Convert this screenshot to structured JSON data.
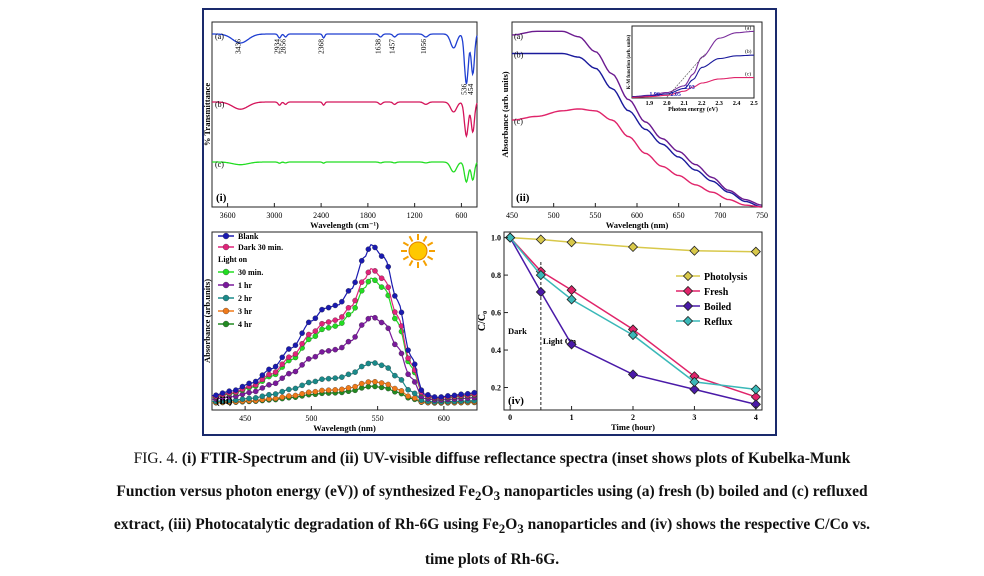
{
  "caption": {
    "fig_label": "FIG. 4.",
    "line1": " (i) FTIR-Spectrum and (ii) UV-visible diffuse reflectance spectra (inset shows plots of Kubelka-Munk",
    "line2_pre": "Function versus photon energy (eV)) of synthesized Fe",
    "line2_post": "O",
    "line2_end": " nanoparticles using (a) fresh (b) boiled and (c) refluxed",
    "line3_pre": "extract, (iii) Photocatalytic degradation of Rh-6G using Fe",
    "line3_post": "O",
    "line3_end": " nanoparticles and (iv) shows the respective C/Co vs.",
    "line4": "time plots of Rh-6G.",
    "sub2": "2",
    "sub3": "3"
  },
  "chart_data": [
    {
      "type": "line",
      "panel": "(i)",
      "title": "",
      "xlabel": "Wavelength (cm⁻¹)",
      "ylabel": "% Transmittance",
      "xlim": [
        3800,
        400
      ],
      "x_ticks": [
        3600,
        3000,
        2400,
        1800,
        1200,
        600
      ],
      "x_tick_labels": [
        "3600",
        "3000",
        "2400",
        "1800",
        "1200",
        "600"
      ],
      "series": [
        {
          "name": "(a)",
          "color": "#1f3fd1"
        },
        {
          "name": "(b)",
          "color": "#d4145a"
        },
        {
          "name": "(c)",
          "color": "#22dd22"
        }
      ],
      "peak_labels": [
        "3436",
        "2934",
        "2856",
        "2368",
        "1638",
        "1457",
        "1056",
        "536",
        "454"
      ],
      "peak_positions": [
        3436,
        2934,
        2856,
        2368,
        1638,
        1457,
        1056,
        536,
        454
      ]
    },
    {
      "type": "line",
      "panel": "(ii)",
      "xlabel": "Wavelength (nm)",
      "ylabel": "Absorbance (arb. units)",
      "xlim": [
        450,
        750
      ],
      "x_ticks": [
        450,
        500,
        550,
        600,
        650,
        700,
        750
      ],
      "x_tick_labels": [
        "450",
        "500",
        "550",
        "600",
        "650",
        "700",
        "750"
      ],
      "series": [
        {
          "name": "(a)",
          "color": "#6b1a8f",
          "x": [
            450,
            480,
            510,
            530,
            550,
            570,
            590,
            610,
            630,
            650,
            670,
            690,
            710,
            730,
            750
          ],
          "y": [
            0.93,
            0.95,
            0.95,
            0.92,
            0.84,
            0.72,
            0.58,
            0.46,
            0.37,
            0.3,
            0.23,
            0.16,
            0.09,
            0.04,
            0.01
          ]
        },
        {
          "name": "(b)",
          "color": "#1a1a9c",
          "x": [
            450,
            480,
            510,
            530,
            550,
            570,
            590,
            610,
            630,
            650,
            670,
            690,
            710,
            730,
            750
          ],
          "y": [
            0.83,
            0.83,
            0.83,
            0.81,
            0.75,
            0.64,
            0.52,
            0.42,
            0.34,
            0.27,
            0.2,
            0.14,
            0.08,
            0.03,
            0.0
          ]
        },
        {
          "name": "(c)",
          "color": "#e0246a",
          "x": [
            450,
            480,
            510,
            530,
            550,
            570,
            590,
            610,
            630,
            650,
            670,
            690,
            710,
            730,
            750
          ],
          "y": [
            0.47,
            0.49,
            0.52,
            0.53,
            0.52,
            0.47,
            0.38,
            0.29,
            0.22,
            0.17,
            0.12,
            0.08,
            0.04,
            0.01,
            0.0
          ]
        }
      ],
      "inset": {
        "xlabel": "Photon energy (eV)",
        "ylabel": "K-M function (arb. units)",
        "xlim": [
          1.8,
          2.5
        ],
        "x_ticks": [
          1.9,
          2.0,
          2.1,
          2.2,
          2.3,
          2.4,
          2.5
        ],
        "x_tick_labels": [
          "1.9",
          "2.0",
          "2.1",
          "2.2",
          "2.3",
          "2.4",
          "2.5"
        ],
        "bandgap_labels": [
          "1.96",
          "2.05",
          "2.03"
        ],
        "series": [
          {
            "name": "(a)",
            "color": "#7a2e9c",
            "x": [
              1.8,
              1.9,
              2.0,
              2.1,
              2.15,
              2.2,
              2.3,
              2.4,
              2.5
            ],
            "y": [
              0.02,
              0.04,
              0.08,
              0.18,
              0.35,
              0.6,
              0.88,
              0.96,
              0.98
            ]
          },
          {
            "name": "(b)",
            "color": "#1a1a9c",
            "x": [
              1.8,
              1.9,
              2.0,
              2.1,
              2.15,
              2.2,
              2.3,
              2.4,
              2.5
            ],
            "y": [
              0.02,
              0.03,
              0.06,
              0.14,
              0.27,
              0.45,
              0.58,
              0.62,
              0.63
            ]
          },
          {
            "name": "(c)",
            "color": "#e0246a",
            "x": [
              1.8,
              1.9,
              2.0,
              2.1,
              2.15,
              2.2,
              2.3,
              2.4,
              2.5
            ],
            "y": [
              0.01,
              0.02,
              0.04,
              0.1,
              0.16,
              0.22,
              0.28,
              0.3,
              0.3
            ]
          }
        ]
      }
    },
    {
      "type": "line",
      "panel": "(iii)",
      "xlabel": "Wavelength (nm)",
      "ylabel": "Absorbance (arb.units)",
      "xlim": [
        425,
        625
      ],
      "x_ticks": [
        450,
        500,
        550,
        600
      ],
      "x_tick_labels": [
        "450",
        "500",
        "550",
        "600"
      ],
      "legend_subtitle": "Light on",
      "shape_x": [
        425,
        440,
        455,
        470,
        485,
        500,
        510,
        520,
        530,
        540,
        545,
        555,
        565,
        575,
        585,
        595,
        605,
        615,
        625
      ],
      "series": [
        {
          "name": "Blank",
          "color": "#1a1ab0",
          "peak": 1.0
        },
        {
          "name": "Dark 30 min.",
          "color": "#e0247a",
          "peak": 0.85
        },
        {
          "name": "30 min.",
          "color": "#22dd22",
          "peak": 0.79
        },
        {
          "name": "1 hr",
          "color": "#7a1a9c",
          "peak": 0.55
        },
        {
          "name": "2 hr",
          "color": "#1a8a8a",
          "peak": 0.26
        },
        {
          "name": "3 hr",
          "color": "#f07a1a",
          "peak": 0.14
        },
        {
          "name": "4 hr",
          "color": "#228b22",
          "peak": 0.11
        }
      ],
      "normalized_shape": [
        0.05,
        0.08,
        0.13,
        0.22,
        0.35,
        0.52,
        0.6,
        0.62,
        0.72,
        0.92,
        1.0,
        0.92,
        0.65,
        0.3,
        0.06,
        0.04,
        0.05,
        0.06,
        0.07
      ]
    },
    {
      "type": "line",
      "panel": "(iv)",
      "xlabel": "Time (hour)",
      "ylabel": "C/C₀",
      "xlim": [
        -0.1,
        4.1
      ],
      "ylim": [
        0.08,
        1.03
      ],
      "x_ticks": [
        0,
        1,
        2,
        3,
        4
      ],
      "x_tick_labels": [
        "0",
        "1",
        "2",
        "3",
        "4"
      ],
      "y_ticks": [
        0.2,
        0.4,
        0.6,
        0.8,
        1.0
      ],
      "y_tick_labels": [
        "0.2",
        "0.4",
        "0.6",
        "0.8",
        "1.0"
      ],
      "annotations": {
        "dark": "Dark",
        "light_on": "Light On",
        "light_on_time": 0.5
      },
      "series": [
        {
          "name": "Photolysis",
          "color": "#d8c84a",
          "marker": "diamond",
          "x": [
            0,
            0.5,
            1,
            2,
            3,
            4
          ],
          "y": [
            1.0,
            0.99,
            0.975,
            0.95,
            0.93,
            0.925
          ]
        },
        {
          "name": "Fresh",
          "color": "#e0246a",
          "marker": "diamond",
          "x": [
            0,
            0.5,
            1,
            2,
            3,
            4
          ],
          "y": [
            1.0,
            0.82,
            0.72,
            0.51,
            0.26,
            0.15
          ]
        },
        {
          "name": "Boiled",
          "color": "#4a1aa8",
          "marker": "diamond",
          "x": [
            0,
            0.5,
            1,
            2,
            3,
            4
          ],
          "y": [
            1.0,
            0.71,
            0.43,
            0.27,
            0.19,
            0.11
          ]
        },
        {
          "name": "Reflux",
          "color": "#3ab8b8",
          "marker": "diamond",
          "x": [
            0,
            0.5,
            1,
            2,
            3,
            4
          ],
          "y": [
            1.0,
            0.8,
            0.67,
            0.48,
            0.23,
            0.19
          ]
        }
      ]
    }
  ]
}
